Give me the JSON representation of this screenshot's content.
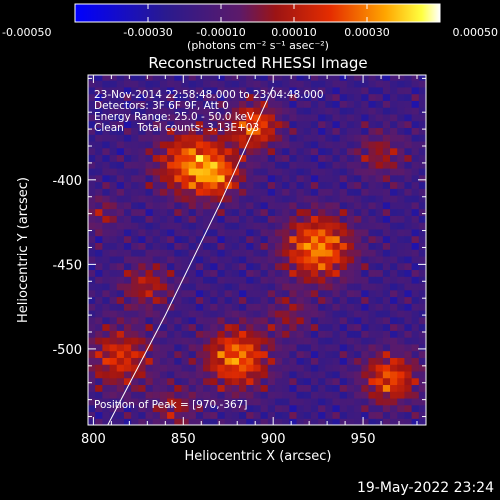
{
  "chart_data": {
    "type": "heatmap",
    "title": "Reconstructed RHESSI Image",
    "xlabel": "Heliocentric X (arcsec)",
    "ylabel": "Heliocentric Y (arcsec)",
    "xlim": [
      797,
      985
    ],
    "ylim": [
      -545,
      -338
    ],
    "xticks": [
      800,
      850,
      900,
      950
    ],
    "yticks": [
      -400,
      -450,
      -500
    ],
    "colorbar": {
      "label": "(photons cm⁻² s⁻¹ asec⁻²)",
      "range": [
        -0.0005,
        0.0005
      ],
      "ticks": [
        "-0.00050",
        "-0.00030",
        "-0.00010",
        "0.00010",
        "0.00030",
        "0.00050"
      ],
      "colormap": "blue-purple-red-orange-yellow-white"
    },
    "info_lines": [
      "23-Nov-2014 22:58:48.000 to 23:04:48.000",
      "Detectors: 3F 6F 9F, Att 0",
      "Energy Range: 25.0 - 50.0 keV",
      "Clean    Total counts: 3.13E+03"
    ],
    "peak_label": "Position of Peak = [970,-367]",
    "peak_position": [
      970,
      -367
    ],
    "limb_line": [
      [
        808,
        -545
      ],
      [
        840,
        -480
      ],
      [
        870,
        -415
      ],
      [
        900,
        -345
      ]
    ],
    "sources": [
      {
        "x": 855,
        "y": -390,
        "amp": 0.00045,
        "sigma": 14
      },
      {
        "x": 890,
        "y": -368,
        "amp": 0.0004,
        "sigma": 10
      },
      {
        "x": 870,
        "y": -398,
        "amp": 0.00028,
        "sigma": 9
      },
      {
        "x": 925,
        "y": -440,
        "amp": 0.00048,
        "sigma": 14
      },
      {
        "x": 880,
        "y": -505,
        "amp": 0.00046,
        "sigma": 13
      },
      {
        "x": 965,
        "y": -517,
        "amp": 0.0004,
        "sigma": 11
      },
      {
        "x": 815,
        "y": -505,
        "amp": 0.00034,
        "sigma": 13
      },
      {
        "x": 830,
        "y": -462,
        "amp": 0.00026,
        "sigma": 10
      },
      {
        "x": 960,
        "y": -385,
        "amp": 0.00022,
        "sigma": 10
      },
      {
        "x": 910,
        "y": -480,
        "amp": 0.00018,
        "sigma": 9
      },
      {
        "x": 845,
        "y": -535,
        "amp": 0.00022,
        "sigma": 9
      },
      {
        "x": 805,
        "y": -420,
        "amp": 0.00018,
        "sigma": 8
      }
    ]
  },
  "footer": {
    "timestamp": "19-May-2022 23:24"
  }
}
